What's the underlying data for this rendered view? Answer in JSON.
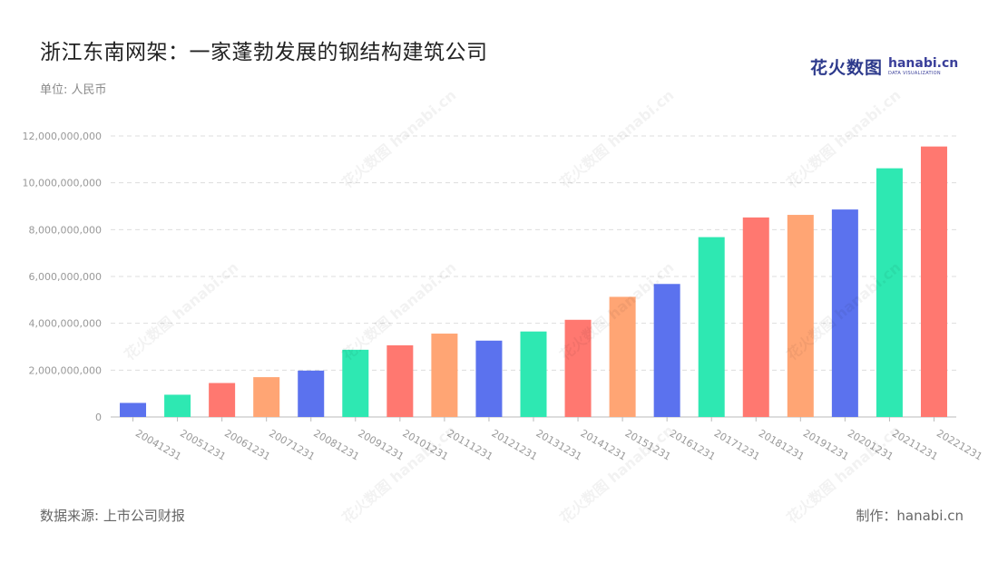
{
  "title": "浙江东南网架：一家蓬勃发展的钢结构建筑公司",
  "unit_label": "单位: 人民币",
  "logo": {
    "cn": "花火数图",
    "en": "hanabi.cn",
    "en_sub": "DATA VISUALIZATION"
  },
  "watermark_text": "花火数图 hanabi.cn",
  "footer": {
    "source": "数据来源: 上市公司财报",
    "credit": "制作：hanabi.cn"
  },
  "colors": {
    "blue": "#5b72ee",
    "green": "#2ee8b2",
    "red": "#ff7870",
    "orange": "#ffa574",
    "grid": "#dddddd",
    "axis_text": "#999999"
  },
  "chart_data": {
    "type": "bar",
    "categories": [
      "20041231",
      "20051231",
      "20061231",
      "20071231",
      "20081231",
      "20091231",
      "20101231",
      "20111231",
      "20121231",
      "20131231",
      "20141231",
      "20151231",
      "20161231",
      "20171231",
      "20181231",
      "20191231",
      "20201231",
      "20211231",
      "20221231"
    ],
    "values": [
      600000000,
      950000000,
      1450000000,
      1700000000,
      1980000000,
      2870000000,
      3060000000,
      3560000000,
      3260000000,
      3650000000,
      4150000000,
      5130000000,
      5680000000,
      7680000000,
      8520000000,
      8630000000,
      8860000000,
      10620000000,
      11550000000
    ],
    "bar_colors": [
      "#5b72ee",
      "#2ee8b2",
      "#ff7870",
      "#ffa574",
      "#5b72ee",
      "#2ee8b2",
      "#ff7870",
      "#ffa574",
      "#5b72ee",
      "#2ee8b2",
      "#ff7870",
      "#ffa574",
      "#5b72ee",
      "#2ee8b2",
      "#ff7870",
      "#ffa574",
      "#5b72ee",
      "#2ee8b2",
      "#ff7870"
    ],
    "yticks": [
      "0",
      "2,000,000,000",
      "4,000,000,000",
      "6,000,000,000",
      "8,000,000,000",
      "10,000,000,000",
      "12,000,000,000"
    ],
    "ylim": [
      0,
      12000000000
    ],
    "grid": true
  }
}
